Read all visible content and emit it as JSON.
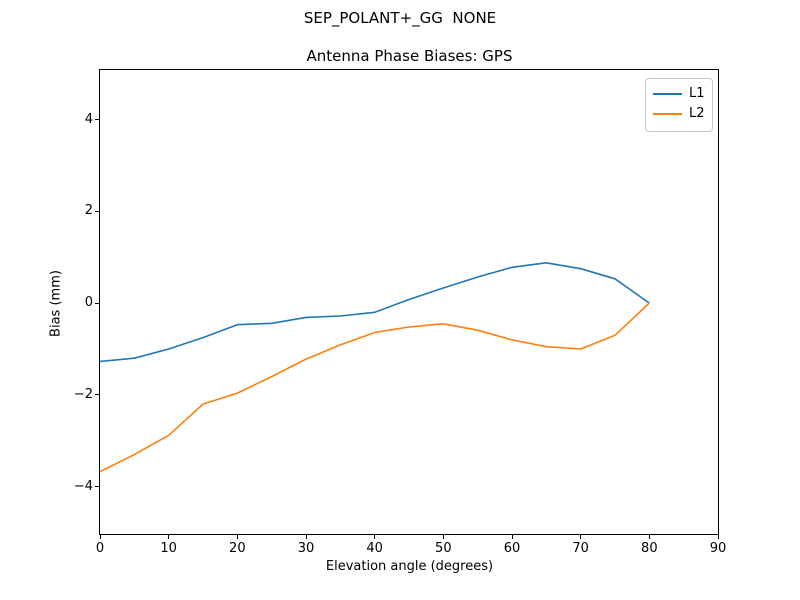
{
  "figure": {
    "suptitle": "SEP_POLANT+_GG  NONE",
    "background": "#ffffff"
  },
  "chart_data": {
    "type": "line",
    "suptitle": "SEP_POLANT+_GG  NONE",
    "title": "Antenna Phase Biases: GPS",
    "xlabel": "Elevation angle (degrees)",
    "ylabel": "Bias (mm)",
    "xlim": [
      0,
      90
    ],
    "ylim": [
      -5.03,
      5.08
    ],
    "x_ticks": [
      0,
      10,
      20,
      30,
      40,
      50,
      60,
      70,
      80,
      90
    ],
    "x_tick_labels": [
      "0",
      "10",
      "20",
      "30",
      "40",
      "50",
      "60",
      "70",
      "80",
      "90"
    ],
    "y_ticks": [
      -4,
      -2,
      0,
      2,
      4
    ],
    "y_tick_labels": [
      "−4",
      "−2",
      "0",
      "2",
      "4"
    ],
    "grid": false,
    "legend_position": "upper right",
    "x": [
      0,
      5,
      10,
      15,
      20,
      25,
      30,
      35,
      40,
      45,
      50,
      55,
      60,
      65,
      70,
      75,
      80
    ],
    "series": [
      {
        "name": "L1",
        "color": "#1f77b4",
        "values": [
          -1.27,
          -1.2,
          -1.0,
          -0.75,
          -0.47,
          -0.44,
          -0.31,
          -0.28,
          -0.2,
          0.08,
          0.33,
          0.57,
          0.78,
          0.88,
          0.75,
          0.53,
          0.0
        ]
      },
      {
        "name": "L2",
        "color": "#ff7f0e",
        "values": [
          -3.67,
          -3.3,
          -2.88,
          -2.2,
          -1.96,
          -1.6,
          -1.22,
          -0.91,
          -0.64,
          -0.52,
          -0.45,
          -0.59,
          -0.8,
          -0.95,
          -1.0,
          -0.7,
          0.0
        ]
      }
    ]
  },
  "legend": {
    "entries": [
      {
        "label": "L1",
        "color": "#1f77b4"
      },
      {
        "label": "L2",
        "color": "#ff7f0e"
      }
    ]
  }
}
